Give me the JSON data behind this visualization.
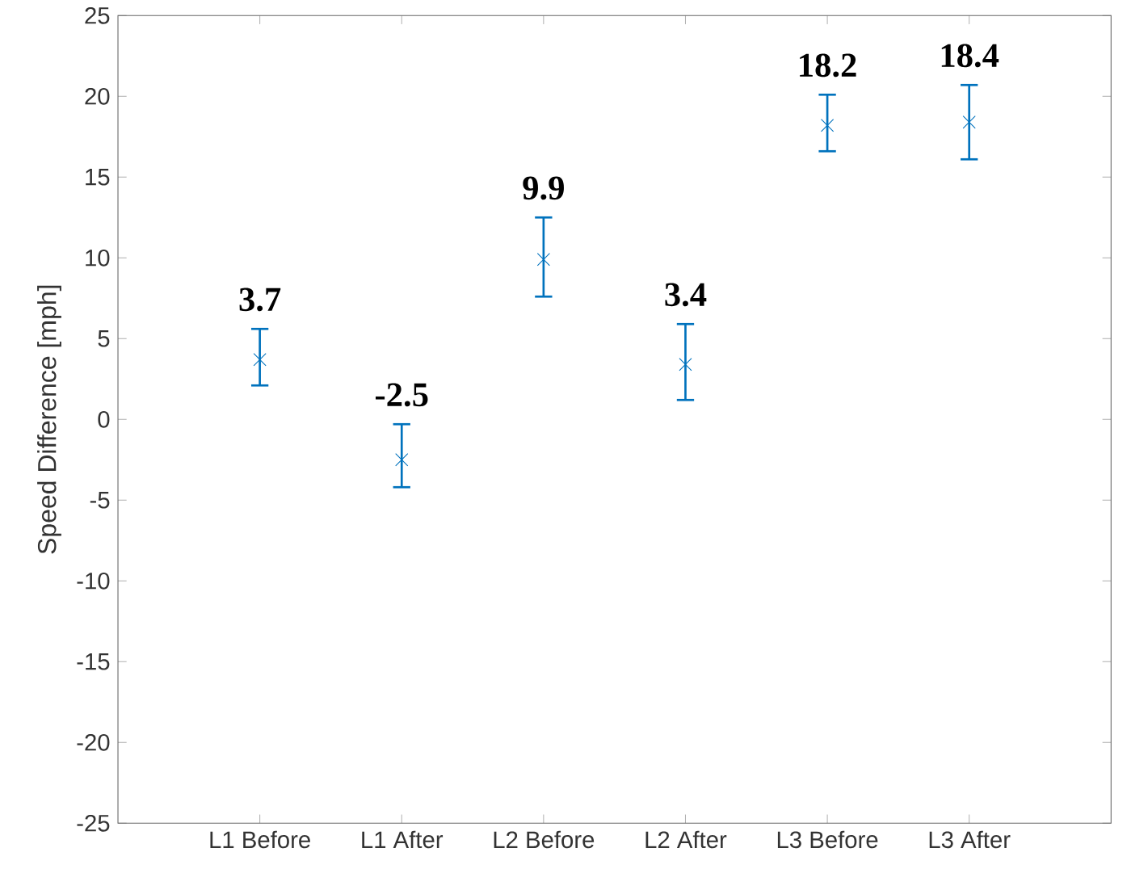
{
  "chart_data": {
    "type": "scatter",
    "ylabel": "Speed Difference [mph]",
    "categories": [
      "L1 Before",
      "L1 After",
      "L2 Before",
      "L2 After",
      "L3 Before",
      "L3 After"
    ],
    "values": [
      3.7,
      -2.5,
      9.9,
      3.4,
      18.2,
      18.4
    ],
    "errors": [
      [
        2.1,
        5.6
      ],
      [
        -4.2,
        -0.3
      ],
      [
        7.6,
        12.5
      ],
      [
        1.2,
        5.9
      ],
      [
        16.6,
        20.1
      ],
      [
        16.1,
        20.7
      ]
    ],
    "color": "#0072bd",
    "marker": "cross",
    "data_labels": true,
    "ylim": [
      -25,
      25
    ],
    "yticks": [
      -25,
      -20,
      -15,
      -10,
      -5,
      0,
      5,
      10,
      15,
      20,
      25
    ],
    "grid": false
  }
}
